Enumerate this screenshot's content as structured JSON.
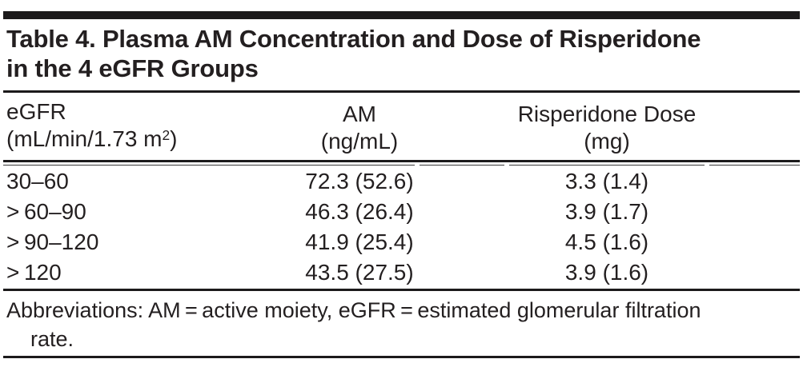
{
  "title": {
    "line1": "Table 4. Plasma AM Concentration and Dose of Risperidone",
    "line2": "in the 4 eGFR Groups"
  },
  "table": {
    "columns": [
      {
        "label": "eGFR",
        "unit_pre": "(mL/min/1.73 m",
        "unit_sup": "2",
        "unit_post": ")"
      },
      {
        "label": "AM",
        "unit": "(ng/mL)"
      },
      {
        "label": "Risperidone Dose",
        "unit": "(mg)"
      }
    ],
    "rows": [
      {
        "egfr": "30–60",
        "am": "72.3 (52.6)",
        "dose": "3.3 (1.4)"
      },
      {
        "egfr": "> 60–90",
        "am": "46.3 (26.4)",
        "dose": "3.9 (1.7)"
      },
      {
        "egfr": "> 90–120",
        "am": "41.9 (25.4)",
        "dose": "4.5 (1.6)"
      },
      {
        "egfr": "> 120",
        "am": "43.5 (27.5)",
        "dose": "3.9 (1.6)"
      }
    ]
  },
  "footnote": {
    "line1": "Abbreviations: AM = active moiety, eGFR = estimated glomerular filtration",
    "line2": "rate."
  },
  "colors": {
    "ink": "#231f20",
    "rule": "#1c1a1b",
    "background": "#ffffff"
  }
}
